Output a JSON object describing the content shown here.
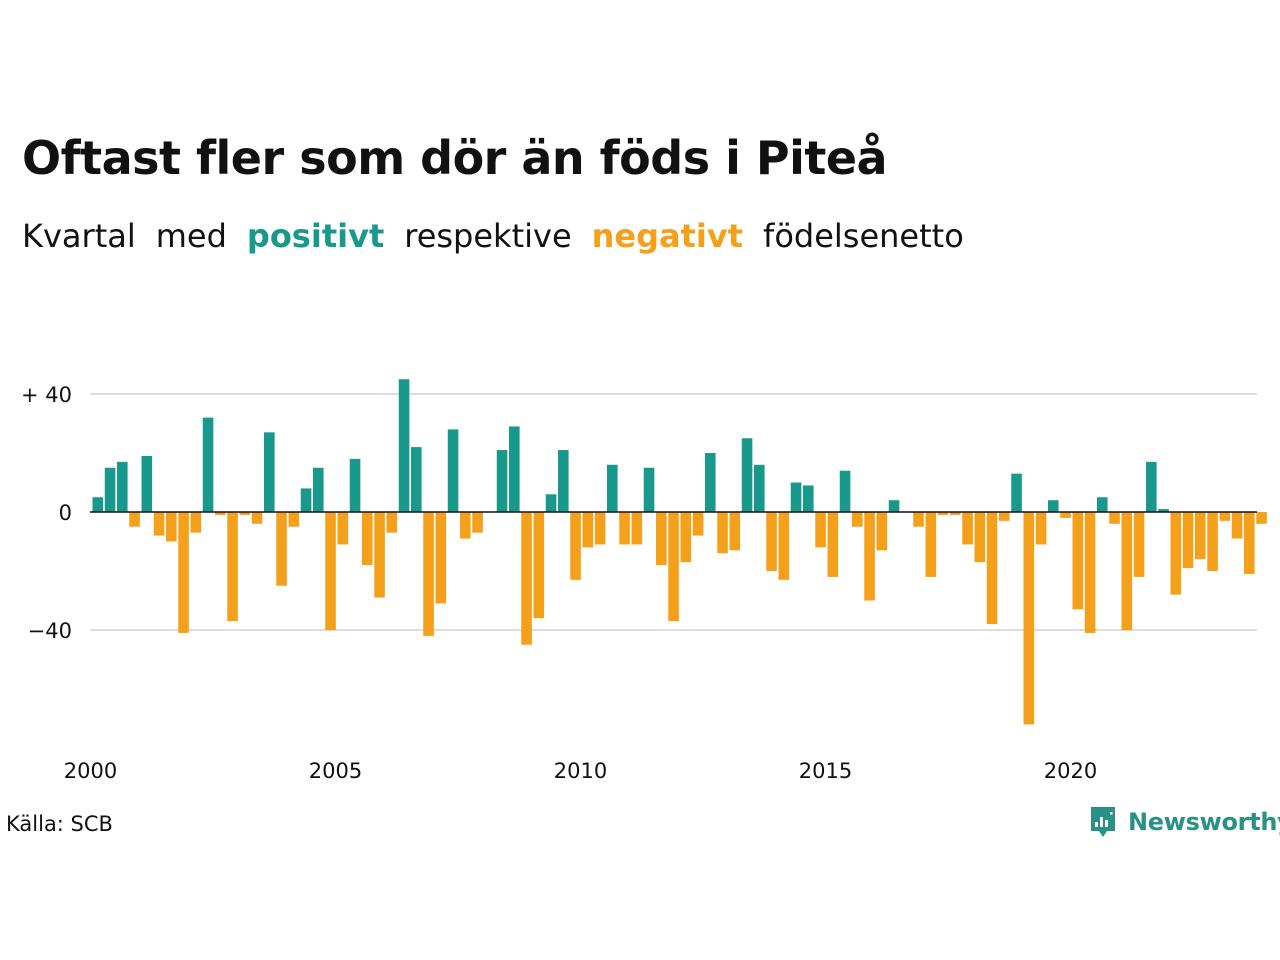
{
  "title": "Oftast fler som dör än föds i Piteå",
  "subtitle": {
    "part1": "Kvartal",
    "part2": "med",
    "positive_word": "positivt",
    "part3": "respektive",
    "negative_word": "negativt",
    "part4": "födelsenetto"
  },
  "source": "Källa: SCB",
  "brand": "Newsworthy",
  "colors": {
    "positive": "#18998b",
    "negative": "#f5a01a",
    "grid": "#dddddd",
    "brand": "#2a9285"
  },
  "chart_data": {
    "type": "bar",
    "title": "Oftast fler som dör än föds i Piteå",
    "xlabel": "",
    "ylabel": "",
    "ylim": [
      -72,
      45
    ],
    "y_ticks": [
      {
        "value": 40,
        "label": "+ 40"
      },
      {
        "value": 0,
        "label": "0"
      },
      {
        "value": -40,
        "label": "−40"
      }
    ],
    "x_ticks": [
      {
        "value": 2000,
        "label": "2000"
      },
      {
        "value": 2005,
        "label": "2005"
      },
      {
        "value": 2010,
        "label": "2010"
      },
      {
        "value": 2015,
        "label": "2015"
      },
      {
        "value": 2020,
        "label": "2020"
      }
    ],
    "x_range": [
      2000,
      2024
    ],
    "grid": true,
    "bar_frequency": "quarterly",
    "start_year": 2000,
    "values": [
      5,
      15,
      17,
      -5,
      19,
      -8,
      -10,
      -41,
      -7,
      32,
      -1,
      -37,
      -1,
      -4,
      27,
      -25,
      -5,
      8,
      15,
      -40,
      -11,
      18,
      -18,
      -29,
      -7,
      45,
      22,
      -42,
      -31,
      28,
      -9,
      -7,
      0,
      21,
      29,
      -45,
      -36,
      6,
      21,
      -23,
      -12,
      -11,
      16,
      -11,
      -11,
      15,
      -18,
      -37,
      -17,
      -8,
      20,
      -14,
      -13,
      25,
      16,
      -20,
      -23,
      10,
      9,
      -12,
      -22,
      14,
      -5,
      -30,
      -13,
      4,
      0,
      -5,
      -22,
      -1,
      -1,
      -11,
      -17,
      -38,
      -3,
      13,
      -72,
      -11,
      4,
      -2,
      -33,
      -41,
      5,
      -4,
      -40,
      -22,
      17,
      1,
      -28,
      -19,
      -16,
      -20,
      -3,
      -9,
      -21,
      -4
    ]
  }
}
